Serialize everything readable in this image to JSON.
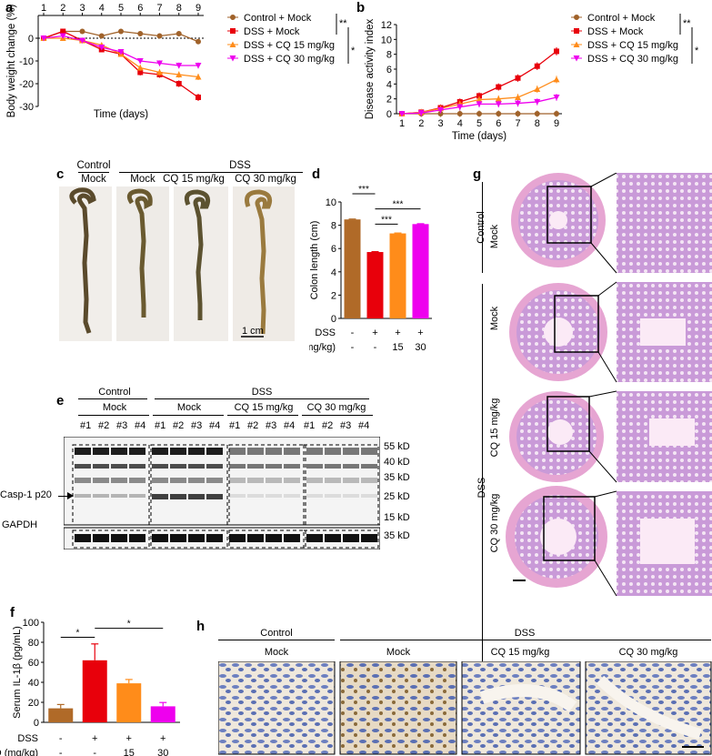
{
  "panels": {
    "a": "a",
    "b": "b",
    "c": "c",
    "d": "d",
    "e": "e",
    "f": "f",
    "g": "g",
    "h": "h"
  },
  "legend_groups": [
    "Control + Mock",
    "DSS + Mock",
    "DSS + CQ 15 mg/kg",
    "DSS + CQ 30 mg/kg"
  ],
  "colors": {
    "control": "#a0622a",
    "dss": "#e8000b",
    "cq15": "#ff8c1a",
    "cq30": "#ee00ee",
    "brown_bar": "#b06a28"
  },
  "chart_data": [
    {
      "id": "a",
      "type": "line",
      "xlabel": "Time (days)",
      "ylabel": "Body weight change (%)",
      "x": [
        1,
        2,
        3,
        4,
        5,
        6,
        7,
        8,
        9
      ],
      "ylim": [
        -30,
        10
      ],
      "yticks": [
        0,
        -10,
        -20,
        -30
      ],
      "significance": [
        "**",
        "*"
      ],
      "series": [
        {
          "name": "Control + Mock",
          "values": [
            0,
            3,
            3,
            1,
            3,
            2,
            1,
            2,
            -1.5
          ]
        },
        {
          "name": "DSS + Mock",
          "values": [
            0,
            3,
            -1,
            -5,
            -7,
            -15,
            -16,
            -20,
            -26
          ]
        },
        {
          "name": "DSS + CQ 15 mg/kg",
          "values": [
            0,
            0,
            -1,
            -3,
            -7,
            -13,
            -15,
            -16,
            -17
          ]
        },
        {
          "name": "DSS + CQ 30 mg/kg",
          "values": [
            0,
            1,
            -1,
            -4,
            -6,
            -10,
            -11,
            -12,
            -12
          ]
        }
      ]
    },
    {
      "id": "b",
      "type": "line",
      "xlabel": "Time (days)",
      "ylabel": "Disease activity index",
      "x": [
        1,
        2,
        3,
        4,
        5,
        6,
        7,
        8,
        9
      ],
      "ylim": [
        0,
        12
      ],
      "yticks": [
        0,
        2,
        4,
        6,
        8,
        10,
        12
      ],
      "significance": [
        "**",
        "*"
      ],
      "series": [
        {
          "name": "Control + Mock",
          "values": [
            0,
            0,
            0,
            0,
            0,
            0,
            0,
            0,
            0
          ]
        },
        {
          "name": "DSS + Mock",
          "values": [
            0,
            0.2,
            0.8,
            1.6,
            2.4,
            3.6,
            4.8,
            6.4,
            8.4
          ]
        },
        {
          "name": "DSS + CQ 15 mg/kg",
          "values": [
            0,
            0.2,
            0.7,
            1.3,
            1.9,
            2.0,
            2.2,
            3.3,
            4.6
          ]
        },
        {
          "name": "DSS + CQ 30 mg/kg",
          "values": [
            0,
            0.1,
            0.5,
            0.9,
            1.3,
            1.3,
            1.4,
            1.6,
            2.2
          ]
        }
      ]
    },
    {
      "id": "d",
      "type": "bar",
      "ylabel": "Colon length (cm)",
      "ylim": [
        0,
        10
      ],
      "yticks": [
        0,
        2,
        4,
        6,
        8,
        10
      ],
      "values": [
        8.5,
        5.7,
        7.3,
        8.1
      ],
      "row_labels": [
        "DSS",
        "CQ (mg/kg)"
      ],
      "dss_row": [
        "-",
        "+",
        "+",
        "+"
      ],
      "cq_row": [
        "-",
        "-",
        "15",
        "30"
      ],
      "significance": [
        "***",
        "***",
        "***"
      ]
    },
    {
      "id": "f",
      "type": "bar",
      "ylabel": "Serum IL-1β (pg/mL)",
      "ylim": [
        0,
        100
      ],
      "yticks": [
        0,
        20,
        40,
        60,
        80,
        100
      ],
      "values": [
        14,
        62,
        39,
        16
      ],
      "row_labels": [
        "DSS",
        "CQ (mg/kg)"
      ],
      "dss_row": [
        "-",
        "+",
        "+",
        "+"
      ],
      "cq_row": [
        "-",
        "-",
        "15",
        "30"
      ],
      "significance": [
        "*",
        "*"
      ]
    }
  ],
  "c": {
    "header_control": "Control",
    "header_dss": "DSS",
    "labels": [
      "Mock",
      "Mock",
      "CQ 15 mg/kg",
      "CQ 30 mg/kg"
    ],
    "scale": "1 cm"
  },
  "e": {
    "header_control": "Control",
    "header_dss": "DSS",
    "sub": [
      "Mock",
      "Mock",
      "CQ 15 mg/kg",
      "CQ 30 mg/kg"
    ],
    "lanes": [
      "#1",
      "#2",
      "#3",
      "#4"
    ],
    "markers": [
      "55 kD",
      "40 kD",
      "35 kD",
      "25 kD",
      "15 kD"
    ],
    "gapdh_marker": "35 kD",
    "casp": "Casp-1 p20",
    "gapdh": "GAPDH"
  },
  "g": {
    "control": "Control",
    "mock1": "Mock",
    "dss": "DSS",
    "mock2": "Mock",
    "cq15": "CQ 15 mg/kg",
    "cq30": "CQ 30 mg/kg"
  },
  "h": {
    "control": "Control",
    "dss": "DSS",
    "labels": [
      "Mock",
      "Mock",
      "CQ 15 mg/kg",
      "CQ 30 mg/kg"
    ]
  }
}
